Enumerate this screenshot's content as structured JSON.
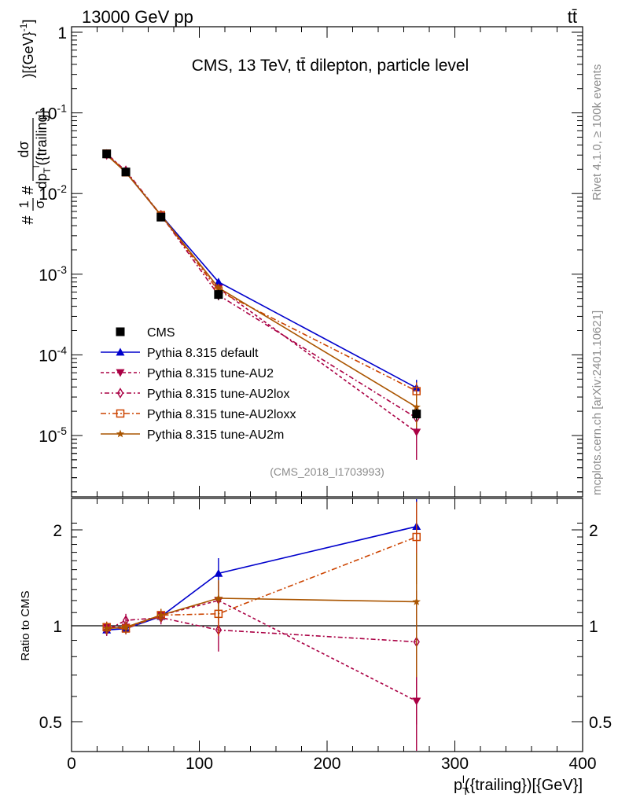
{
  "header": {
    "energy_label": "13000 GeV pp",
    "process_label": "tt̄"
  },
  "side_labels": {
    "rivet": "Rivet 4.1.0, ≥ 100k events",
    "mcplots": "mcplots.cern.ch [arXiv:2401.10621]"
  },
  "chart_data": [
    {
      "type": "line",
      "yscale": "log",
      "title": "CMS, 13 TeV, tt̄ dilepton, particle level",
      "analysis_tag": "(CMS_2018_I1703993)",
      "ylabel": "#1/σ# dσ/dp_T^l({trailing}) [{GeV}^-1]",
      "xlim": [
        0,
        400
      ],
      "ylim": [
        1e-06,
        1
      ],
      "y_ticks": [
        {
          "value": 1,
          "label": "1"
        },
        {
          "value": 0.1,
          "label": "10^-1"
        },
        {
          "value": 0.01,
          "label": "10^-2"
        },
        {
          "value": 0.001,
          "label": "10^-3"
        },
        {
          "value": 0.0001,
          "label": "10^-4"
        },
        {
          "value": 1e-05,
          "label": "10^-5"
        }
      ],
      "x": [
        27.5,
        42.5,
        70,
        115,
        270
      ],
      "data": {
        "name": "CMS",
        "values": [
          0.031,
          0.0185,
          0.0051,
          0.00056,
          1.85e-05
        ],
        "errors": [
          0.0015,
          0.0008,
          0.00025,
          8e-05,
          3e-06
        ]
      },
      "series": [
        {
          "name": "Pythia 8.315 default",
          "values": [
            0.0305,
            0.0183,
            0.0054,
            0.0008,
            3.9e-05
          ],
          "errors": [
            0.0008,
            0.0005,
            0.0002,
            8e-05,
            1e-05
          ]
        },
        {
          "name": "Pythia 8.315 tune-AU2",
          "values": [
            0.0315,
            0.0186,
            0.0053,
            0.00067,
            1.1e-05
          ],
          "errors": [
            0.0008,
            0.0005,
            0.0002,
            8e-05,
            6e-06
          ]
        },
        {
          "name": "Pythia 8.315 tune-AU2lox",
          "values": [
            0.0305,
            0.0192,
            0.0054,
            0.00055,
            1.65e-05
          ],
          "errors": [
            0.0008,
            0.0005,
            0.0002,
            7e-05,
            7e-06
          ]
        },
        {
          "name": "Pythia 8.315 tune-AU2loxx",
          "values": [
            0.0313,
            0.0183,
            0.0054,
            0.00062,
            3.55e-05
          ],
          "errors": [
            0.0008,
            0.0005,
            0.0002,
            8e-05,
            1e-05
          ]
        },
        {
          "name": "Pythia 8.315 tune-AU2m",
          "values": [
            0.03,
            0.0183,
            0.0054,
            0.00068,
            2.25e-05
          ],
          "errors": [
            0.0008,
            0.0005,
            0.0002,
            8e-05,
            1e-05
          ]
        }
      ]
    },
    {
      "type": "line",
      "yscale": "log",
      "ylabel": "Ratio to CMS",
      "xlabel": "p_T^l({trailing}) [{GeV}]",
      "xlim": [
        0,
        400
      ],
      "ylim": [
        0.4,
        2.3
      ],
      "x_ticks": [
        {
          "value": 0,
          "label": "0"
        },
        {
          "value": 100,
          "label": "100"
        },
        {
          "value": 200,
          "label": "200"
        },
        {
          "value": 300,
          "label": "300"
        },
        {
          "value": 400,
          "label": "400"
        }
      ],
      "y_ticks": [
        {
          "value": 0.5,
          "label": "0.5"
        },
        {
          "value": 1,
          "label": "1"
        },
        {
          "value": 2,
          "label": "2"
        }
      ],
      "x": [
        27.5,
        42.5,
        70,
        115,
        270
      ],
      "reference": 1,
      "series": [
        {
          "name": "Pythia 8.315 default",
          "values": [
            0.97,
            0.98,
            1.07,
            1.46,
            2.05
          ],
          "errors": [
            0.04,
            0.04,
            0.05,
            0.17,
            0.55
          ]
        },
        {
          "name": "Pythia 8.315 tune-AU2",
          "values": [
            0.99,
            0.99,
            1.08,
            1.2,
            0.58
          ],
          "errors": [
            0.04,
            0.04,
            0.05,
            0.18,
            0.35
          ]
        },
        {
          "name": "Pythia 8.315 tune-AU2lox",
          "values": [
            0.97,
            1.04,
            1.06,
            0.97,
            0.89
          ],
          "errors": [
            0.04,
            0.05,
            0.05,
            0.14,
            0.4
          ]
        },
        {
          "name": "Pythia 8.315 tune-AU2loxx",
          "values": [
            0.99,
            0.98,
            1.08,
            1.09,
            1.9
          ],
          "errors": [
            0.04,
            0.04,
            0.05,
            0.16,
            0.55
          ]
        },
        {
          "name": "Pythia 8.315 tune-AU2m",
          "values": [
            0.98,
            0.99,
            1.08,
            1.22,
            1.19
          ],
          "errors": [
            0.04,
            0.04,
            0.05,
            0.17,
            0.5
          ]
        }
      ]
    }
  ],
  "styles": {
    "data": {
      "color": "#000000",
      "marker": "square-filled"
    },
    "series": [
      {
        "color": "#0000cc",
        "dash": "",
        "marker": "triangle-up-filled"
      },
      {
        "color": "#aa0044",
        "dash": "4,3",
        "marker": "triangle-down-filled"
      },
      {
        "color": "#aa0044",
        "dash": "2,3,6,3",
        "marker": "diamond-open"
      },
      {
        "color": "#cc4400",
        "dash": "7,3,2,3",
        "marker": "square-open"
      },
      {
        "color": "#aa5500",
        "dash": "",
        "marker": "star-filled"
      }
    ]
  }
}
